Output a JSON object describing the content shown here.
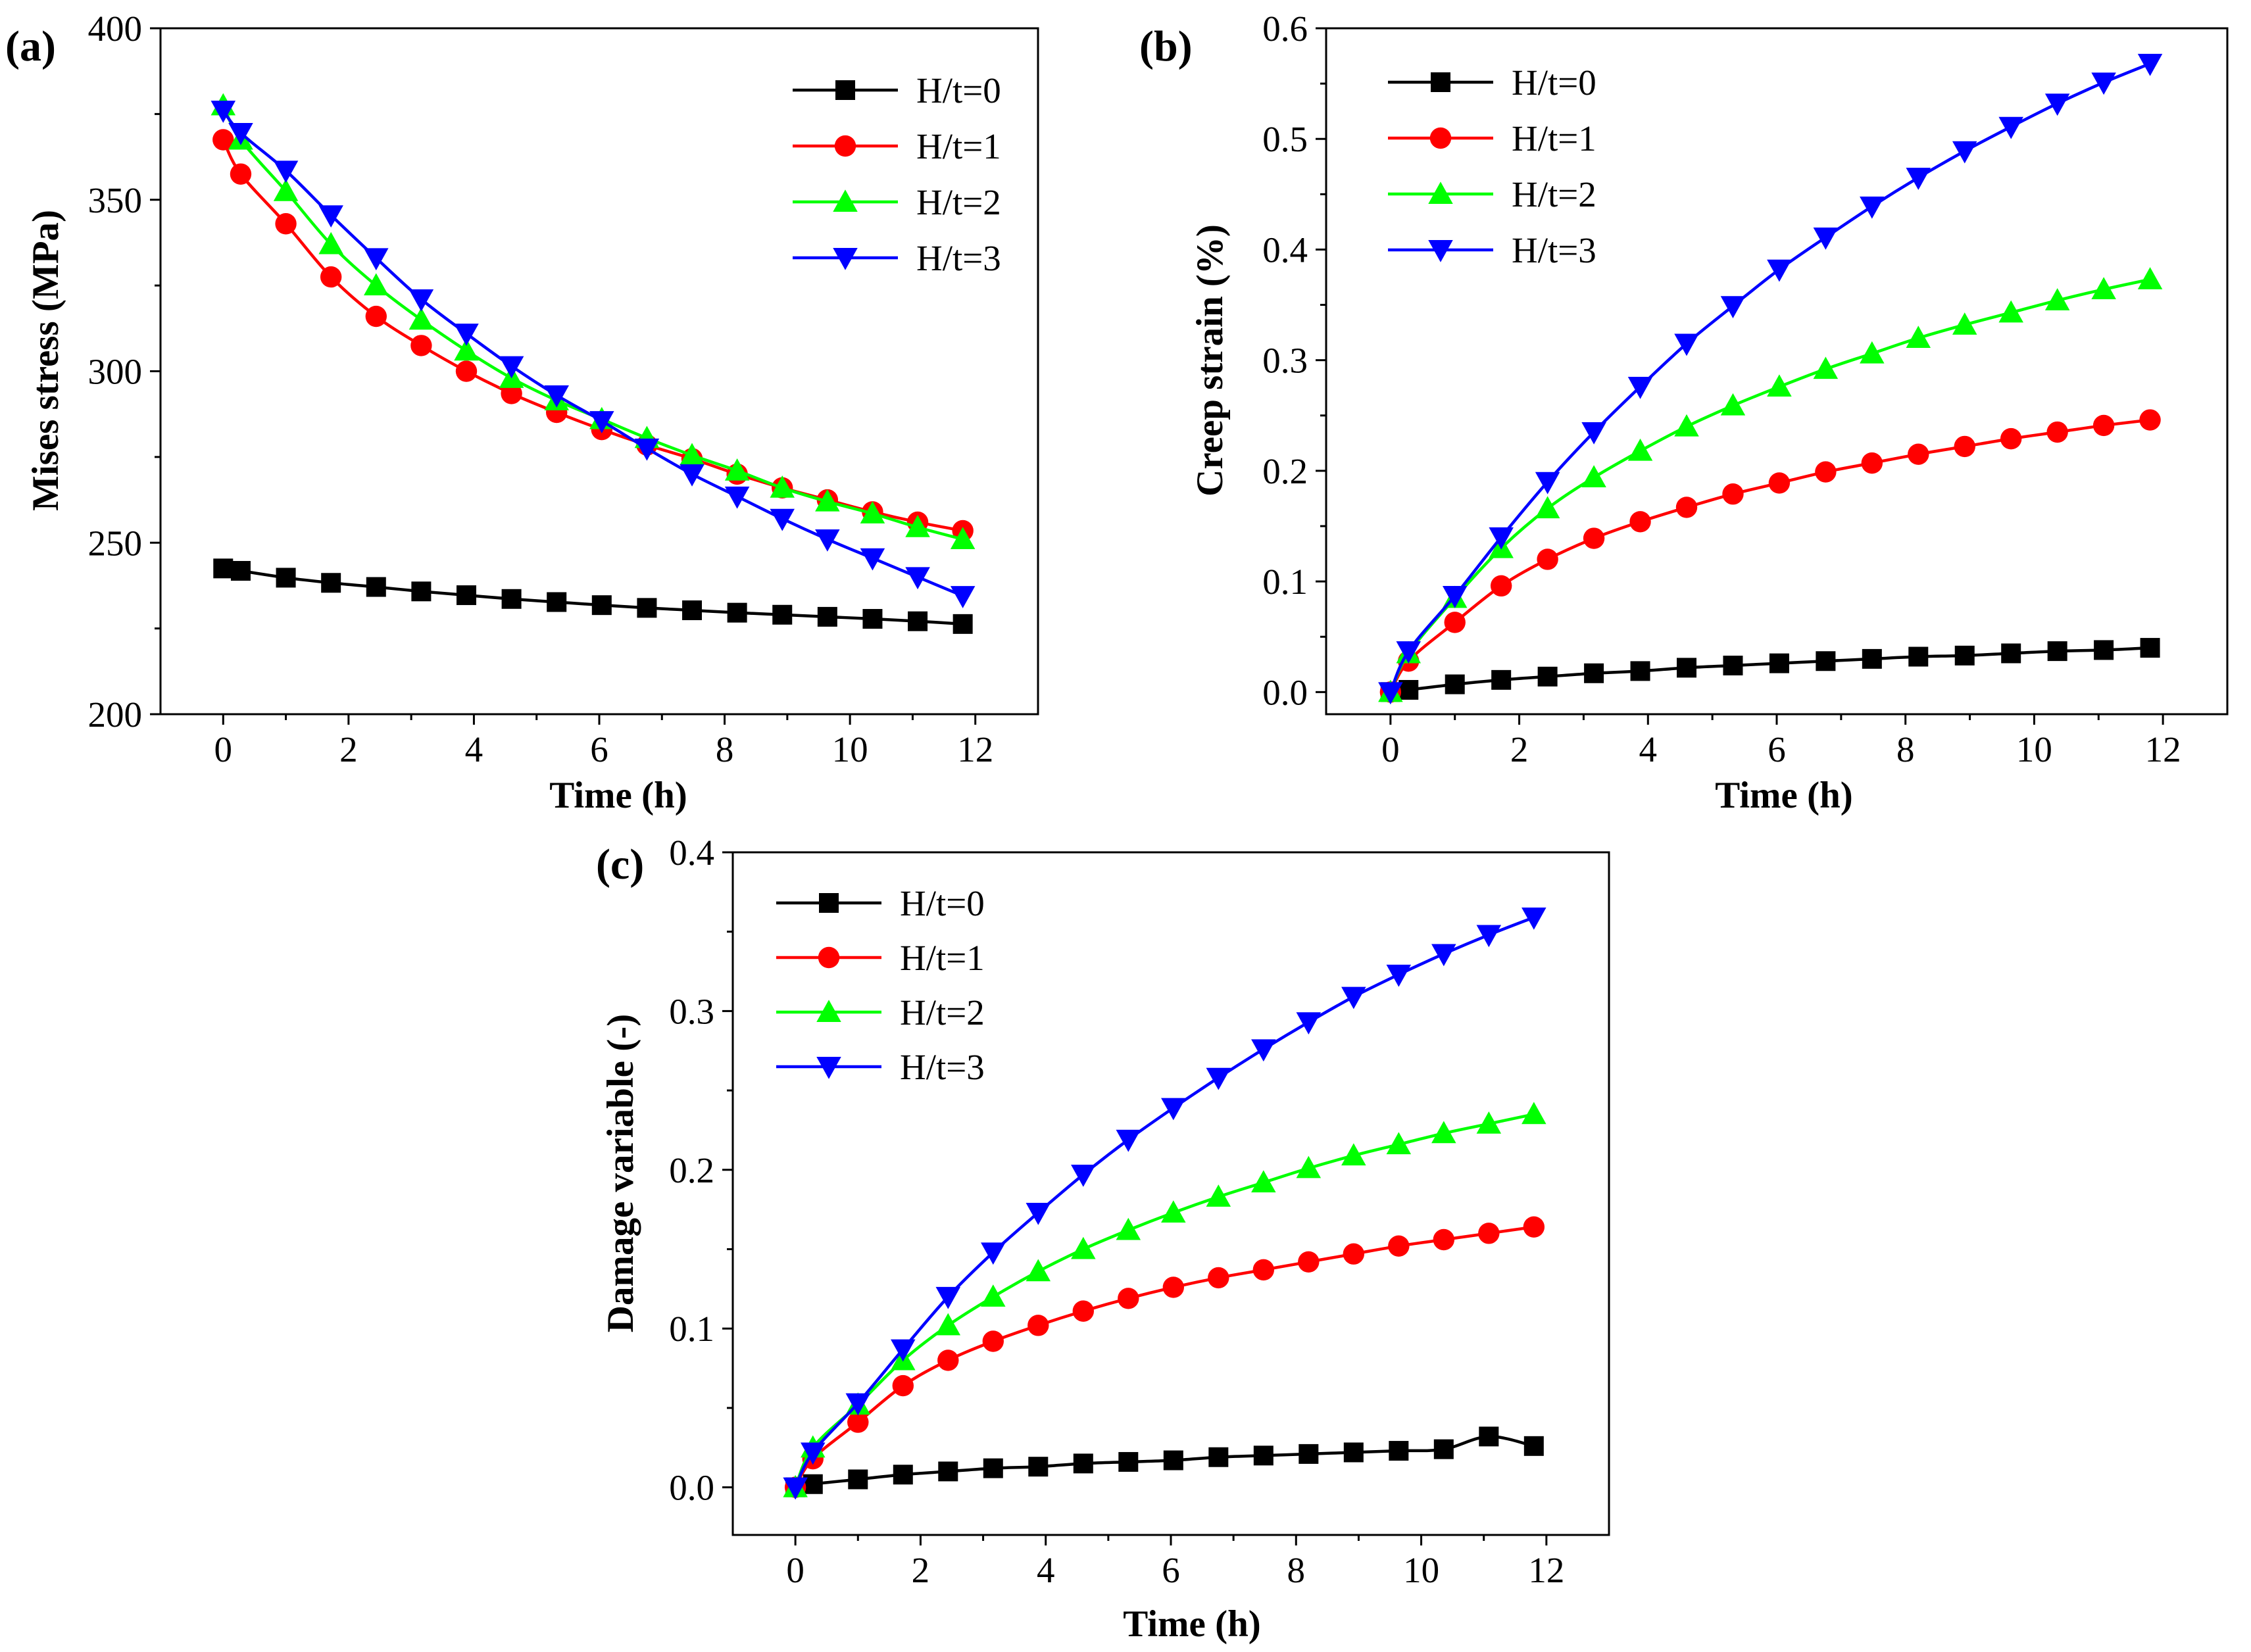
{
  "figure": {
    "background": "#ffffff"
  },
  "chart_data": [
    {
      "panel": "(a)",
      "type": "line",
      "xlabel": "Time (h)",
      "ylabel": "Mises stress (MPa)",
      "xlim": [
        -1,
        13
      ],
      "ylim": [
        200,
        400
      ],
      "xticks": [
        0,
        2,
        4,
        6,
        8,
        10,
        12
      ],
      "yticks": [
        200,
        250,
        300,
        350,
        400
      ],
      "legend_position": "top-right",
      "markers": true,
      "series": [
        {
          "name": "H/t=0",
          "color": "#000000",
          "marker": "square",
          "x": [
            0,
            0.28,
            1,
            1.72,
            2.44,
            3.16,
            3.88,
            4.6,
            5.32,
            6.04,
            6.76,
            7.48,
            8.2,
            8.92,
            9.64,
            10.36,
            11.08,
            11.8
          ],
          "y": [
            242.5,
            241.8,
            239.8,
            238.3,
            237.1,
            235.8,
            234.7,
            233.6,
            232.7,
            231.8,
            231.0,
            230.3,
            229.6,
            229.0,
            228.4,
            227.8,
            227.1,
            226.3
          ]
        },
        {
          "name": "H/t=1",
          "color": "#ff0000",
          "marker": "circle",
          "x": [
            0,
            0.28,
            1,
            1.72,
            2.44,
            3.16,
            3.88,
            4.6,
            5.32,
            6.04,
            6.76,
            7.48,
            8.2,
            8.92,
            9.64,
            10.36,
            11.08,
            11.8
          ],
          "y": [
            367.5,
            357.5,
            343.0,
            327.5,
            316.0,
            307.5,
            300.0,
            293.5,
            288.0,
            283.0,
            278.5,
            274.5,
            270.0,
            266.0,
            262.5,
            259.0,
            256.0,
            253.5
          ]
        },
        {
          "name": "H/t=2",
          "color": "#00ff00",
          "marker": "triangle-up",
          "x": [
            0,
            0.28,
            1,
            1.72,
            2.44,
            3.16,
            3.88,
            4.6,
            5.32,
            6.04,
            6.76,
            7.48,
            8.2,
            8.92,
            9.64,
            10.36,
            11.08,
            11.8
          ],
          "y": [
            377.5,
            367.5,
            352.5,
            337.0,
            325.0,
            315.0,
            306.0,
            298.0,
            291.5,
            286.0,
            280.5,
            275.5,
            271.0,
            266.0,
            262.0,
            258.5,
            254.5,
            251.0
          ]
        },
        {
          "name": "H/t=3",
          "color": "#0000ff",
          "marker": "triangle-down",
          "x": [
            0,
            0.28,
            1,
            1.72,
            2.44,
            3.16,
            3.88,
            4.6,
            5.32,
            6.04,
            6.76,
            7.48,
            8.2,
            8.92,
            9.64,
            10.36,
            11.08,
            11.8
          ],
          "y": [
            376.0,
            369.5,
            358.5,
            345.5,
            333.0,
            321.0,
            311.0,
            301.5,
            293.0,
            285.5,
            277.5,
            270.0,
            263.5,
            257.0,
            251.0,
            245.5,
            240.0,
            234.5
          ]
        }
      ]
    },
    {
      "panel": "(b)",
      "type": "line",
      "xlabel": "Time (h)",
      "ylabel": "Creep strain (%)",
      "xlim": [
        -1,
        13
      ],
      "ylim": [
        -0.02,
        0.6
      ],
      "xticks": [
        0,
        2,
        4,
        6,
        8,
        10,
        12
      ],
      "yticks": [
        0.0,
        0.1,
        0.2,
        0.3,
        0.4,
        0.5,
        0.6
      ],
      "ytick_labels": [
        "0.0",
        "0.1",
        "0.2",
        "0.3",
        "0.4",
        "0.5",
        "0.6"
      ],
      "legend_position": "top-left",
      "markers": true,
      "series": [
        {
          "name": "H/t=0",
          "color": "#000000",
          "marker": "square",
          "x": [
            0,
            0.28,
            1,
            1.72,
            2.44,
            3.16,
            3.88,
            4.6,
            5.32,
            6.04,
            6.76,
            7.48,
            8.2,
            8.92,
            9.64,
            10.36,
            11.08,
            11.8
          ],
          "y": [
            0.0,
            0.002,
            0.007,
            0.011,
            0.014,
            0.017,
            0.019,
            0.022,
            0.024,
            0.026,
            0.028,
            0.03,
            0.032,
            0.033,
            0.035,
            0.037,
            0.038,
            0.04
          ]
        },
        {
          "name": "H/t=1",
          "color": "#ff0000",
          "marker": "circle",
          "x": [
            0,
            0.28,
            1,
            1.72,
            2.44,
            3.16,
            3.88,
            4.6,
            5.32,
            6.04,
            6.76,
            7.48,
            8.2,
            8.92,
            9.64,
            10.36,
            11.08,
            11.8
          ],
          "y": [
            0.0,
            0.028,
            0.063,
            0.096,
            0.12,
            0.139,
            0.154,
            0.167,
            0.179,
            0.189,
            0.199,
            0.207,
            0.215,
            0.222,
            0.229,
            0.235,
            0.241,
            0.246
          ]
        },
        {
          "name": "H/t=2",
          "color": "#00ff00",
          "marker": "triangle-up",
          "x": [
            0,
            0.28,
            1,
            1.72,
            2.44,
            3.16,
            3.88,
            4.6,
            5.32,
            6.04,
            6.76,
            7.48,
            8.2,
            8.92,
            9.64,
            10.36,
            11.08,
            11.8
          ],
          "y": [
            0.0,
            0.035,
            0.085,
            0.13,
            0.166,
            0.194,
            0.218,
            0.24,
            0.259,
            0.276,
            0.292,
            0.306,
            0.32,
            0.332,
            0.343,
            0.354,
            0.364,
            0.373
          ]
        },
        {
          "name": "H/t=3",
          "color": "#0000ff",
          "marker": "triangle-down",
          "x": [
            0,
            0.28,
            1,
            1.72,
            2.44,
            3.16,
            3.88,
            4.6,
            5.32,
            6.04,
            6.76,
            7.48,
            8.2,
            8.92,
            9.64,
            10.36,
            11.08,
            11.8
          ],
          "y": [
            0.0,
            0.037,
            0.087,
            0.14,
            0.19,
            0.235,
            0.276,
            0.315,
            0.349,
            0.382,
            0.411,
            0.439,
            0.465,
            0.489,
            0.511,
            0.532,
            0.551,
            0.568
          ]
        }
      ]
    },
    {
      "panel": "(c)",
      "type": "line",
      "xlabel": "Time (h)",
      "ylabel": "Damage variable (-)",
      "xlim": [
        -1,
        13
      ],
      "ylim": [
        -0.03,
        0.4
      ],
      "xticks": [
        0,
        2,
        4,
        6,
        8,
        10,
        12
      ],
      "yticks": [
        0.0,
        0.1,
        0.2,
        0.3,
        0.4
      ],
      "ytick_labels": [
        "0.0",
        "0.1",
        "0.2",
        "0.3",
        "0.4"
      ],
      "legend_position": "top-left",
      "markers": true,
      "series": [
        {
          "name": "H/t=0",
          "color": "#000000",
          "marker": "square",
          "x": [
            0,
            0.28,
            1,
            1.72,
            2.44,
            3.16,
            3.88,
            4.6,
            5.32,
            6.04,
            6.76,
            7.48,
            8.2,
            8.92,
            9.64,
            10.36,
            11.08,
            11.8
          ],
          "y": [
            0.0,
            0.002,
            0.005,
            0.008,
            0.01,
            0.012,
            0.013,
            0.015,
            0.016,
            0.017,
            0.019,
            0.02,
            0.021,
            0.022,
            0.023,
            0.024,
            0.032,
            0.026
          ]
        },
        {
          "name": "H/t=1",
          "color": "#ff0000",
          "marker": "circle",
          "x": [
            0,
            0.28,
            1,
            1.72,
            2.44,
            3.16,
            3.88,
            4.6,
            5.32,
            6.04,
            6.76,
            7.48,
            8.2,
            8.92,
            9.64,
            10.36,
            11.08,
            11.8
          ],
          "y": [
            0.0,
            0.018,
            0.041,
            0.064,
            0.08,
            0.092,
            0.102,
            0.111,
            0.119,
            0.126,
            0.132,
            0.137,
            0.142,
            0.147,
            0.152,
            0.156,
            0.16,
            0.164
          ]
        },
        {
          "name": "H/t=2",
          "color": "#00ff00",
          "marker": "triangle-up",
          "x": [
            0,
            0.28,
            1,
            1.72,
            2.44,
            3.16,
            3.88,
            4.6,
            5.32,
            6.04,
            6.76,
            7.48,
            8.2,
            8.92,
            9.64,
            10.36,
            11.08,
            11.8
          ],
          "y": [
            0.0,
            0.025,
            0.052,
            0.08,
            0.102,
            0.12,
            0.136,
            0.15,
            0.162,
            0.173,
            0.183,
            0.192,
            0.201,
            0.209,
            0.216,
            0.223,
            0.229,
            0.235
          ]
        },
        {
          "name": "H/t=3",
          "color": "#0000ff",
          "marker": "triangle-down",
          "x": [
            0,
            0.28,
            1,
            1.72,
            2.44,
            3.16,
            3.88,
            4.6,
            5.32,
            6.04,
            6.76,
            7.48,
            8.2,
            8.92,
            9.64,
            10.36,
            11.08,
            11.8
          ],
          "y": [
            0.0,
            0.022,
            0.053,
            0.087,
            0.12,
            0.148,
            0.173,
            0.197,
            0.219,
            0.239,
            0.258,
            0.276,
            0.293,
            0.309,
            0.323,
            0.336,
            0.348,
            0.359
          ]
        }
      ]
    }
  ]
}
